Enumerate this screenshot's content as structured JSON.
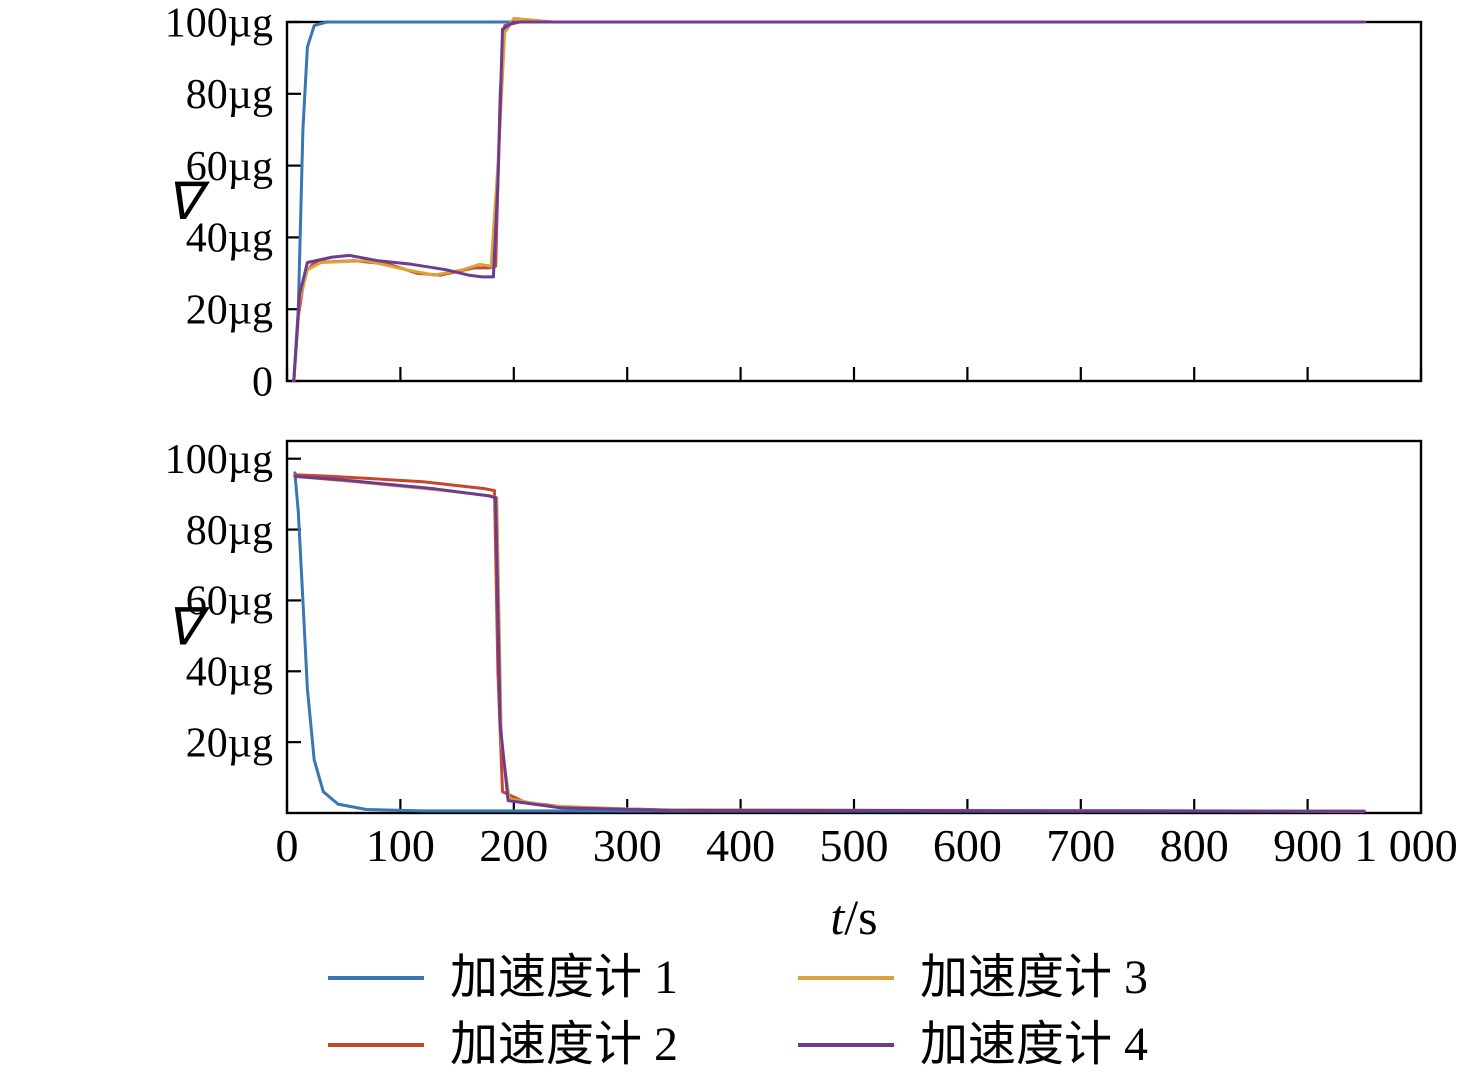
{
  "xlabel": {
    "italic": "t",
    "rest": "/s"
  },
  "legend": {
    "items": [
      {
        "label": "加速度计 1",
        "color": "#3A76AF"
      },
      {
        "label": "加速度计 2",
        "color": "#C8472B"
      },
      {
        "label": "加速度计 3",
        "color": "#DDA239",
        "note": ""
      },
      {
        "label": "加速度计 4",
        "color": "#6E3B92"
      }
    ]
  },
  "chart_data": [
    {
      "type": "line",
      "title": "",
      "ylabel": "∇",
      "xlabel": "",
      "xlim": [
        0,
        1000
      ],
      "ylim": [
        0,
        100
      ],
      "grid": false,
      "y_ticks": [
        {
          "v": 0,
          "label": "0"
        },
        {
          "v": 20,
          "label": "20µg"
        },
        {
          "v": 40,
          "label": "40µg"
        },
        {
          "v": 60,
          "label": "60µg"
        },
        {
          "v": 80,
          "label": "80µg"
        },
        {
          "v": 100,
          "label": "100µg"
        }
      ],
      "x_ticks": [
        {
          "v": 0
        },
        {
          "v": 100
        },
        {
          "v": 200
        },
        {
          "v": 300
        },
        {
          "v": 400
        },
        {
          "v": 500
        },
        {
          "v": 600
        },
        {
          "v": 700
        },
        {
          "v": 800
        },
        {
          "v": 900
        },
        {
          "v": 1000
        }
      ],
      "series": [
        {
          "name": "加速度计 1",
          "color": "#3A76AF",
          "points": [
            [
              6,
              0
            ],
            [
              10,
              20
            ],
            [
              14,
              70
            ],
            [
              18,
              93
            ],
            [
              24,
              99
            ],
            [
              35,
              100
            ],
            [
              950,
              100
            ]
          ]
        },
        {
          "name": "加速度计 2",
          "color": "#C8472B",
          "points": [
            [
              6,
              0
            ],
            [
              10,
              18
            ],
            [
              16,
              30
            ],
            [
              24,
              33
            ],
            [
              60,
              33.5
            ],
            [
              90,
              32.5
            ],
            [
              115,
              30
            ],
            [
              135,
              29.5
            ],
            [
              150,
              30.5
            ],
            [
              165,
              31.5
            ],
            [
              178,
              31.5
            ],
            [
              184,
              32
            ],
            [
              188,
              80
            ],
            [
              192,
              99
            ],
            [
              205,
              100
            ],
            [
              950,
              100
            ]
          ]
        },
        {
          "name": "加速度计 3",
          "color": "#DDA239",
          "points": [
            [
              6,
              0
            ],
            [
              11,
              22
            ],
            [
              18,
              31
            ],
            [
              30,
              33
            ],
            [
              70,
              33.5
            ],
            [
              105,
              31
            ],
            [
              130,
              29.5
            ],
            [
              155,
              31
            ],
            [
              170,
              32.5
            ],
            [
              180,
              32
            ],
            [
              186,
              60
            ],
            [
              192,
              97
            ],
            [
              200,
              101
            ],
            [
              235,
              100
            ],
            [
              950,
              100
            ]
          ]
        },
        {
          "name": "加速度计 4",
          "color": "#6E3B92",
          "points": [
            [
              6,
              0
            ],
            [
              11,
              24
            ],
            [
              18,
              33
            ],
            [
              40,
              34.5
            ],
            [
              55,
              35
            ],
            [
              80,
              33.5
            ],
            [
              110,
              32.5
            ],
            [
              140,
              31
            ],
            [
              160,
              29.5
            ],
            [
              172,
              29
            ],
            [
              182,
              29
            ],
            [
              186,
              55
            ],
            [
              190,
              98
            ],
            [
              200,
              100
            ],
            [
              950,
              100
            ]
          ]
        }
      ]
    },
    {
      "type": "line",
      "title": "",
      "ylabel": "∇",
      "xlabel": "t/s",
      "xlim": [
        0,
        1000
      ],
      "ylim": [
        0,
        105
      ],
      "grid": false,
      "y_ticks": [
        {
          "v": 20,
          "label": "20µg"
        },
        {
          "v": 40,
          "label": "40µg"
        },
        {
          "v": 60,
          "label": "60µg"
        },
        {
          "v": 80,
          "label": "80µg"
        },
        {
          "v": 100,
          "label": "100µg"
        }
      ],
      "x_ticks": [
        {
          "v": 0,
          "label": "0"
        },
        {
          "v": 100,
          "label": "100"
        },
        {
          "v": 200,
          "label": "200"
        },
        {
          "v": 300,
          "label": "300"
        },
        {
          "v": 400,
          "label": "400"
        },
        {
          "v": 500,
          "label": "500"
        },
        {
          "v": 600,
          "label": "600"
        },
        {
          "v": 700,
          "label": "700"
        },
        {
          "v": 800,
          "label": "800"
        },
        {
          "v": 900,
          "label": "900"
        },
        {
          "v": 1000,
          "label": "1 000"
        }
      ],
      "series": [
        {
          "name": "加速度计 1",
          "color": "#3A76AF",
          "points": [
            [
              7,
              96
            ],
            [
              10,
              85
            ],
            [
              14,
              60
            ],
            [
              18,
              35
            ],
            [
              24,
              15
            ],
            [
              32,
              6
            ],
            [
              45,
              2.5
            ],
            [
              70,
              1
            ],
            [
              120,
              0.6
            ],
            [
              950,
              0.5
            ]
          ]
        },
        {
          "name": "加速度计 2",
          "color": "#C8472B",
          "points": [
            [
              7,
              95.5
            ],
            [
              40,
              95
            ],
            [
              120,
              93.5
            ],
            [
              175,
              91.5
            ],
            [
              183,
              91
            ],
            [
              186,
              40
            ],
            [
              190,
              6
            ],
            [
              210,
              3
            ],
            [
              250,
              1.5
            ],
            [
              350,
              0.8
            ],
            [
              950,
              0.5
            ]
          ]
        },
        {
          "name": "加速度计 3",
          "color": "#DDA239",
          "points": [
            [
              7,
              95
            ],
            [
              60,
              93.5
            ],
            [
              140,
              91
            ],
            [
              180,
              89.5
            ],
            [
              185,
              89
            ],
            [
              189,
              20
            ],
            [
              196,
              4
            ],
            [
              230,
              2
            ],
            [
              320,
              0.9
            ],
            [
              950,
              0.5
            ]
          ]
        },
        {
          "name": "加速度计 4",
          "color": "#6E3B92",
          "points": [
            [
              7,
              95
            ],
            [
              50,
              94
            ],
            [
              130,
              91.5
            ],
            [
              178,
              89.5
            ],
            [
              184,
              89
            ],
            [
              188,
              25
            ],
            [
              195,
              3.5
            ],
            [
              240,
              1.5
            ],
            [
              330,
              0.8
            ],
            [
              950,
              0.5
            ]
          ]
        }
      ]
    }
  ]
}
